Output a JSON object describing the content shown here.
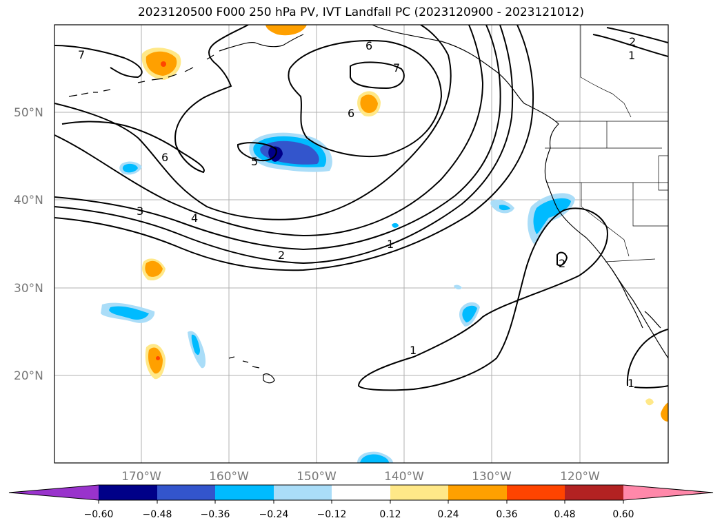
{
  "title": "2023120500 F000 250 hPa PV, IVT Landfall PC (2023120900 - 2023121012)",
  "map": {
    "lat_labels": [
      "50°N",
      "40°N",
      "30°N",
      "20°N"
    ],
    "lon_labels": [
      "170°W",
      "160°W",
      "150°W",
      "140°W",
      "130°W",
      "120°W"
    ],
    "contour_labels": [
      "7",
      "6",
      "7",
      "6",
      "6",
      "5",
      "3",
      "4",
      "2",
      "1",
      "1",
      "2",
      "1",
      "2",
      "1"
    ],
    "colors": {
      "contour": "#000000",
      "gridline": "#b0b0b0",
      "coast": "#000000"
    }
  },
  "colorbar": {
    "ticks": [
      "−0.60",
      "−0.48",
      "−0.36",
      "−0.24",
      "−0.12",
      "0.12",
      "0.24",
      "0.36",
      "0.48",
      "0.60"
    ],
    "colors": [
      "#9933cc",
      "#000088",
      "#3355cc",
      "#00bbff",
      "#aaddf8",
      "#ffffff",
      "#ffe888",
      "#ffa000",
      "#ff4400",
      "#b22222",
      "#ff88aa"
    ]
  }
}
